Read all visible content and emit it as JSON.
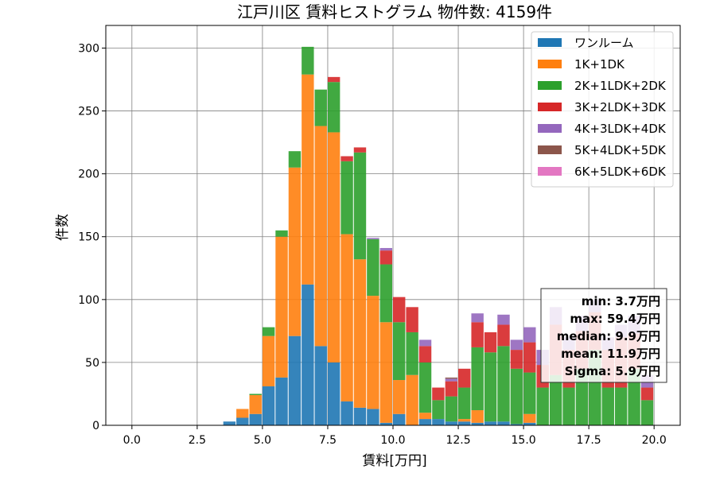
{
  "chart_data": {
    "type": "bar",
    "stacked": true,
    "title": "江戸川区 賃料ヒストグラム  物件数: 4159件",
    "xlabel": "賃料[万円]",
    "ylabel": "件数",
    "xlim": [
      -1.0,
      21.0
    ],
    "ylim": [
      0,
      318
    ],
    "xticks": [
      0.0,
      2.5,
      5.0,
      7.5,
      10.0,
      12.5,
      15.0,
      17.5,
      20.0
    ],
    "xtick_labels": [
      "0.0",
      "2.5",
      "5.0",
      "7.5",
      "10.0",
      "12.5",
      "15.0",
      "17.5",
      "20.0"
    ],
    "yticks": [
      0,
      50,
      100,
      150,
      200,
      250,
      300
    ],
    "ytick_labels": [
      "0",
      "50",
      "100",
      "150",
      "200",
      "250",
      "300"
    ],
    "grid": true,
    "legend_position": "top-right",
    "bin_width": 0.5,
    "bin_starts": [
      3.5,
      4.0,
      4.5,
      5.0,
      5.5,
      6.0,
      6.5,
      7.0,
      7.5,
      8.0,
      8.5,
      9.0,
      9.5,
      10.0,
      10.5,
      11.0,
      11.5,
      12.0,
      12.5,
      13.0,
      13.5,
      14.0,
      14.5,
      15.0,
      15.5,
      16.0,
      16.5,
      17.0,
      17.5,
      18.0,
      18.5,
      19.0,
      19.5
    ],
    "series": [
      {
        "name": "ワンルーム",
        "color": "#1f77b4",
        "values": [
          3,
          6,
          9,
          31,
          38,
          71,
          112,
          63,
          50,
          19,
          14,
          13,
          2,
          9,
          0,
          5,
          5,
          3,
          3,
          2,
          3,
          3,
          1,
          2,
          0,
          0,
          0,
          0,
          0,
          0,
          0,
          0,
          0
        ]
      },
      {
        "name": "1K+1DK",
        "color": "#ff7f0e",
        "values": [
          0,
          7,
          15,
          40,
          112,
          134,
          167,
          175,
          183,
          133,
          118,
          90,
          80,
          27,
          40,
          5,
          0,
          0,
          2,
          10,
          0,
          0,
          0,
          7,
          0,
          0,
          0,
          0,
          0,
          0,
          0,
          0,
          0
        ]
      },
      {
        "name": "2K+1LDK+2DK",
        "color": "#2ca02c",
        "values": [
          0,
          0,
          1,
          7,
          5,
          13,
          22,
          29,
          40,
          58,
          85,
          45,
          46,
          46,
          34,
          40,
          15,
          20,
          25,
          50,
          55,
          60,
          44,
          33,
          30,
          40,
          30,
          45,
          60,
          30,
          30,
          45,
          20
        ]
      },
      {
        "name": "3K+2LDK+3DK",
        "color": "#d62728",
        "values": [
          0,
          0,
          0,
          0,
          0,
          0,
          0,
          0,
          4,
          4,
          4,
          0,
          11,
          20,
          20,
          13,
          10,
          12,
          15,
          20,
          16,
          17,
          15,
          24,
          18,
          40,
          30,
          30,
          30,
          30,
          40,
          28,
          10
        ]
      },
      {
        "name": "4K+3LDK+4DK",
        "color": "#9467bd",
        "values": [
          0,
          0,
          0,
          0,
          0,
          0,
          0,
          0,
          0,
          0,
          0,
          1,
          2,
          0,
          0,
          5,
          0,
          2,
          0,
          7,
          0,
          8,
          8,
          12,
          12,
          14,
          10,
          12,
          10,
          10,
          10,
          14,
          10
        ]
      },
      {
        "name": "5K+4LDK+5DK",
        "color": "#8c564b",
        "values": [
          0,
          0,
          0,
          0,
          0,
          0,
          0,
          0,
          0,
          0,
          0,
          0,
          0,
          0,
          0,
          0,
          0,
          1,
          0,
          0,
          0,
          0,
          0,
          0,
          0,
          0,
          0,
          0,
          0,
          0,
          0,
          0,
          0
        ]
      },
      {
        "name": "6K+5LDK+6DK",
        "color": "#e377c2",
        "values": [
          0,
          0,
          0,
          0,
          0,
          0,
          0,
          0,
          0,
          0,
          0,
          0,
          0,
          0,
          0,
          0,
          0,
          0,
          0,
          0,
          0,
          0,
          0,
          0,
          0,
          0,
          0,
          0,
          0,
          0,
          0,
          0,
          0
        ]
      }
    ],
    "stats_box": {
      "lines": [
        "min: 3.7万円",
        "max: 59.4万円",
        "median: 9.9万円",
        "mean: 11.9万円",
        "Sigma: 5.9万円"
      ]
    }
  }
}
